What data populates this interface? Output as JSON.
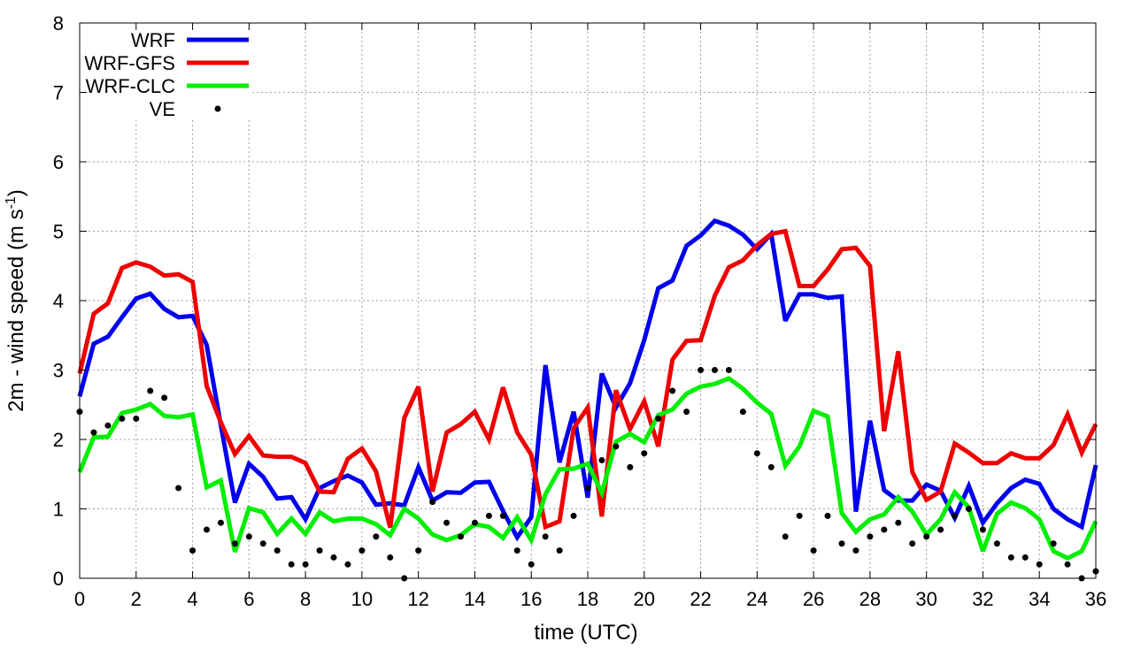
{
  "chart_data": {
    "type": "line",
    "xlabel": "time (UTC)",
    "ylabel": "2m - wind speed  (m s",
    "ylabel_sup": "-1",
    "ylabel_close": ")",
    "xlim": [
      0,
      36
    ],
    "ylim": [
      0,
      8
    ],
    "xticks": [
      0,
      2,
      4,
      6,
      8,
      10,
      12,
      14,
      16,
      18,
      20,
      22,
      24,
      26,
      28,
      30,
      32,
      34,
      36
    ],
    "yticks": [
      0,
      1,
      2,
      3,
      4,
      5,
      6,
      7,
      8
    ],
    "grid": true,
    "legend_position": "top-left",
    "x": [
      0,
      0.5,
      1,
      1.5,
      2,
      2.5,
      3,
      3.5,
      4,
      4.5,
      5,
      5.5,
      6,
      6.5,
      7,
      7.5,
      8,
      8.5,
      9,
      9.5,
      10,
      10.5,
      11,
      11.5,
      12,
      12.5,
      13,
      13.5,
      14,
      14.5,
      15,
      15.5,
      16,
      16.5,
      17,
      17.5,
      18,
      18.5,
      19,
      19.5,
      20,
      20.5,
      21,
      21.5,
      22,
      22.5,
      23,
      23.5,
      24,
      24.5,
      25,
      25.5,
      26,
      26.5,
      27,
      27.5,
      28,
      28.5,
      29,
      29.5,
      30,
      30.5,
      31,
      31.5,
      32,
      32.5,
      33,
      33.5,
      34,
      34.5,
      35,
      35.5,
      36
    ],
    "series": [
      {
        "name": "WRF",
        "style": "line",
        "color": "#0000ee",
        "values": [
          2.62,
          3.38,
          3.48,
          3.76,
          4.03,
          4.1,
          3.88,
          3.76,
          3.78,
          3.36,
          2.21,
          1.09,
          1.65,
          1.46,
          1.15,
          1.17,
          0.85,
          1.3,
          1.4,
          1.48,
          1.38,
          1.06,
          1.08,
          1.05,
          1.6,
          1.12,
          1.24,
          1.23,
          1.38,
          1.39,
          0.97,
          0.59,
          0.88,
          3.07,
          1.67,
          2.4,
          1.16,
          2.95,
          2.46,
          2.81,
          3.43,
          4.18,
          4.29,
          4.79,
          4.94,
          5.15,
          5.08,
          4.95,
          4.74,
          4.96,
          3.71,
          4.09,
          4.09,
          4.04,
          4.06,
          0.96,
          2.27,
          1.27,
          1.12,
          1.12,
          1.35,
          1.26,
          0.87,
          1.33,
          0.8,
          1.08,
          1.3,
          1.42,
          1.36,
          1.0,
          0.85,
          0.74,
          1.63
        ]
      },
      {
        "name": "WRF-GFS",
        "style": "line",
        "color": "#ee0000",
        "values": [
          2.95,
          3.81,
          3.96,
          4.47,
          4.55,
          4.49,
          4.36,
          4.38,
          4.27,
          2.77,
          2.25,
          1.79,
          2.05,
          1.77,
          1.75,
          1.75,
          1.66,
          1.25,
          1.24,
          1.72,
          1.87,
          1.54,
          0.73,
          2.31,
          2.76,
          1.25,
          2.1,
          2.22,
          2.4,
          2.0,
          2.75,
          2.1,
          1.78,
          0.74,
          0.82,
          2.16,
          2.46,
          0.89,
          2.71,
          2.15,
          2.55,
          1.9,
          3.15,
          3.42,
          3.43,
          4.07,
          4.48,
          4.58,
          4.8,
          4.96,
          5.0,
          4.21,
          4.21,
          4.45,
          4.74,
          4.76,
          4.5,
          2.12,
          3.27,
          1.53,
          1.13,
          1.25,
          1.94,
          1.81,
          1.66,
          1.66,
          1.8,
          1.73,
          1.73,
          1.92,
          2.36,
          1.81,
          2.22
        ]
      },
      {
        "name": "WRF-CLC",
        "style": "line",
        "color": "#00ee00",
        "values": [
          1.53,
          2.03,
          2.04,
          2.38,
          2.43,
          2.51,
          2.34,
          2.32,
          2.36,
          1.31,
          1.41,
          0.38,
          1.01,
          0.95,
          0.64,
          0.86,
          0.64,
          0.95,
          0.82,
          0.86,
          0.86,
          0.78,
          0.62,
          1.0,
          0.86,
          0.63,
          0.55,
          0.62,
          0.78,
          0.74,
          0.58,
          0.88,
          0.55,
          1.21,
          1.57,
          1.58,
          1.65,
          1.23,
          1.97,
          2.08,
          1.96,
          2.35,
          2.43,
          2.66,
          2.76,
          2.8,
          2.88,
          2.73,
          2.53,
          2.37,
          1.62,
          1.9,
          2.41,
          2.33,
          0.94,
          0.67,
          0.85,
          0.92,
          1.17,
          0.96,
          0.63,
          0.85,
          1.24,
          1.02,
          0.39,
          0.93,
          1.09,
          1.01,
          0.85,
          0.39,
          0.29,
          0.39,
          0.82
        ]
      },
      {
        "name": "VE",
        "style": "points",
        "color": "#000000",
        "values": [
          2.4,
          2.1,
          2.2,
          2.3,
          2.3,
          2.7,
          2.6,
          1.3,
          0.4,
          0.7,
          0.8,
          0.5,
          0.6,
          0.5,
          0.4,
          0.2,
          0.2,
          0.4,
          0.3,
          0.2,
          0.4,
          0.6,
          0.3,
          0.0,
          0.4,
          1.1,
          0.8,
          0.6,
          0.8,
          0.9,
          0.9,
          0.4,
          0.2,
          0.6,
          0.4,
          0.9,
          1.3,
          1.7,
          1.9,
          1.6,
          1.8,
          2.3,
          2.7,
          2.4,
          3.0,
          3.0,
          3.0,
          2.4,
          1.8,
          1.6,
          0.6,
          0.9,
          0.4,
          0.9,
          0.5,
          0.4,
          0.6,
          0.7,
          0.8,
          0.5,
          0.6,
          0.7,
          0.9,
          1.0,
          0.7,
          0.5,
          0.3,
          0.3,
          0.2,
          0.5,
          0.2,
          0.0,
          0.1
        ]
      }
    ]
  }
}
